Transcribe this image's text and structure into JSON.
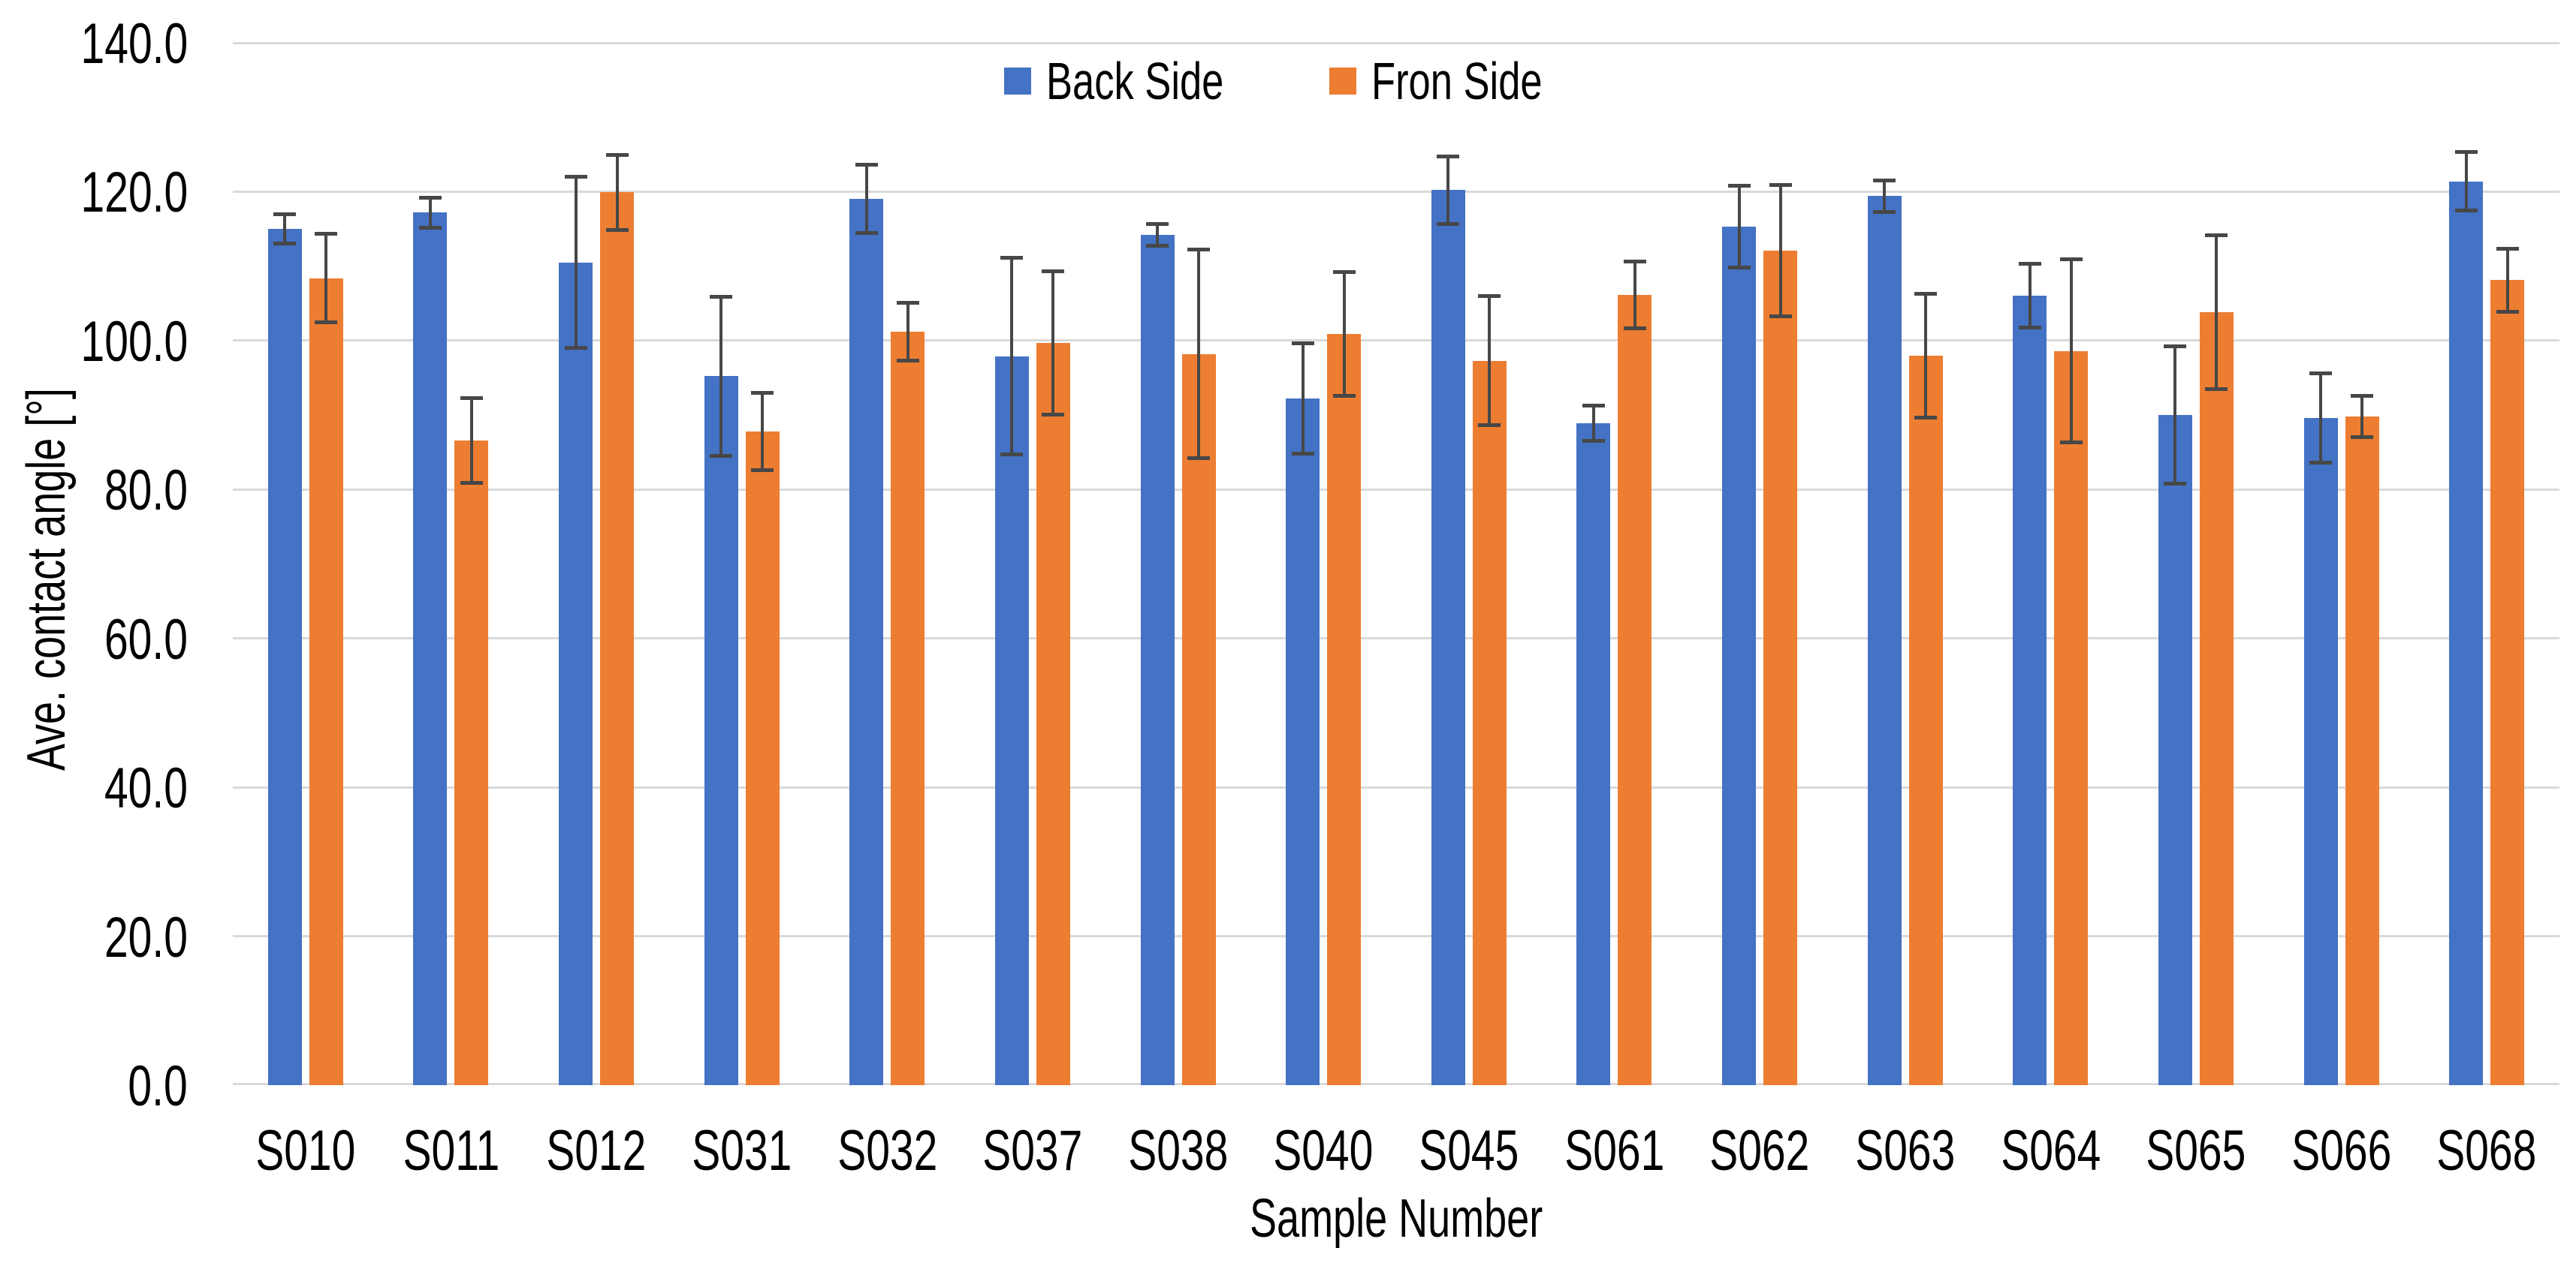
{
  "chart_data": {
    "type": "bar",
    "title": "",
    "xlabel": "Sample Number",
    "ylabel": "Ave. contact angle [°]",
    "ylim": [
      0,
      140
    ],
    "ytick_step": 20,
    "ytick_decimals": 1,
    "grid": true,
    "legend_position": "top-center",
    "categories": [
      "S010",
      "S011",
      "S012",
      "S031",
      "S032",
      "S037",
      "S038",
      "S040",
      "S045",
      "S061",
      "S062",
      "S063",
      "S064",
      "S065",
      "S066",
      "S068"
    ],
    "series": [
      {
        "name": "Back Side",
        "color": "#4472C4",
        "values": [
          115.0,
          117.2,
          110.5,
          95.2,
          119.0,
          97.9,
          114.2,
          92.2,
          120.2,
          88.9,
          115.3,
          119.4,
          106.0,
          90.0,
          89.6,
          121.4
        ],
        "errors": [
          2.0,
          2.0,
          11.5,
          10.7,
          4.6,
          13.2,
          1.5,
          7.4,
          4.5,
          2.4,
          5.5,
          2.1,
          4.3,
          9.2,
          6.0,
          3.9
        ]
      },
      {
        "name": "Fron Side",
        "color": "#ED7D31",
        "values": [
          108.4,
          86.6,
          119.9,
          87.8,
          101.2,
          99.7,
          98.2,
          100.9,
          97.3,
          106.1,
          112.1,
          98.0,
          98.6,
          103.8,
          89.8,
          108.1
        ],
        "errors": [
          5.9,
          5.7,
          5.0,
          5.2,
          3.9,
          9.6,
          14.0,
          8.3,
          8.7,
          4.5,
          8.8,
          8.3,
          12.3,
          10.3,
          2.8,
          4.2
        ]
      }
    ]
  },
  "colors": {
    "back_side": "#4472C4",
    "fron_side": "#ED7D31",
    "error_bar": "#474747",
    "gridline": "#D9D9D9",
    "axis_line": "#D9D9D9",
    "text": "#000000",
    "background": "#FFFFFF"
  }
}
